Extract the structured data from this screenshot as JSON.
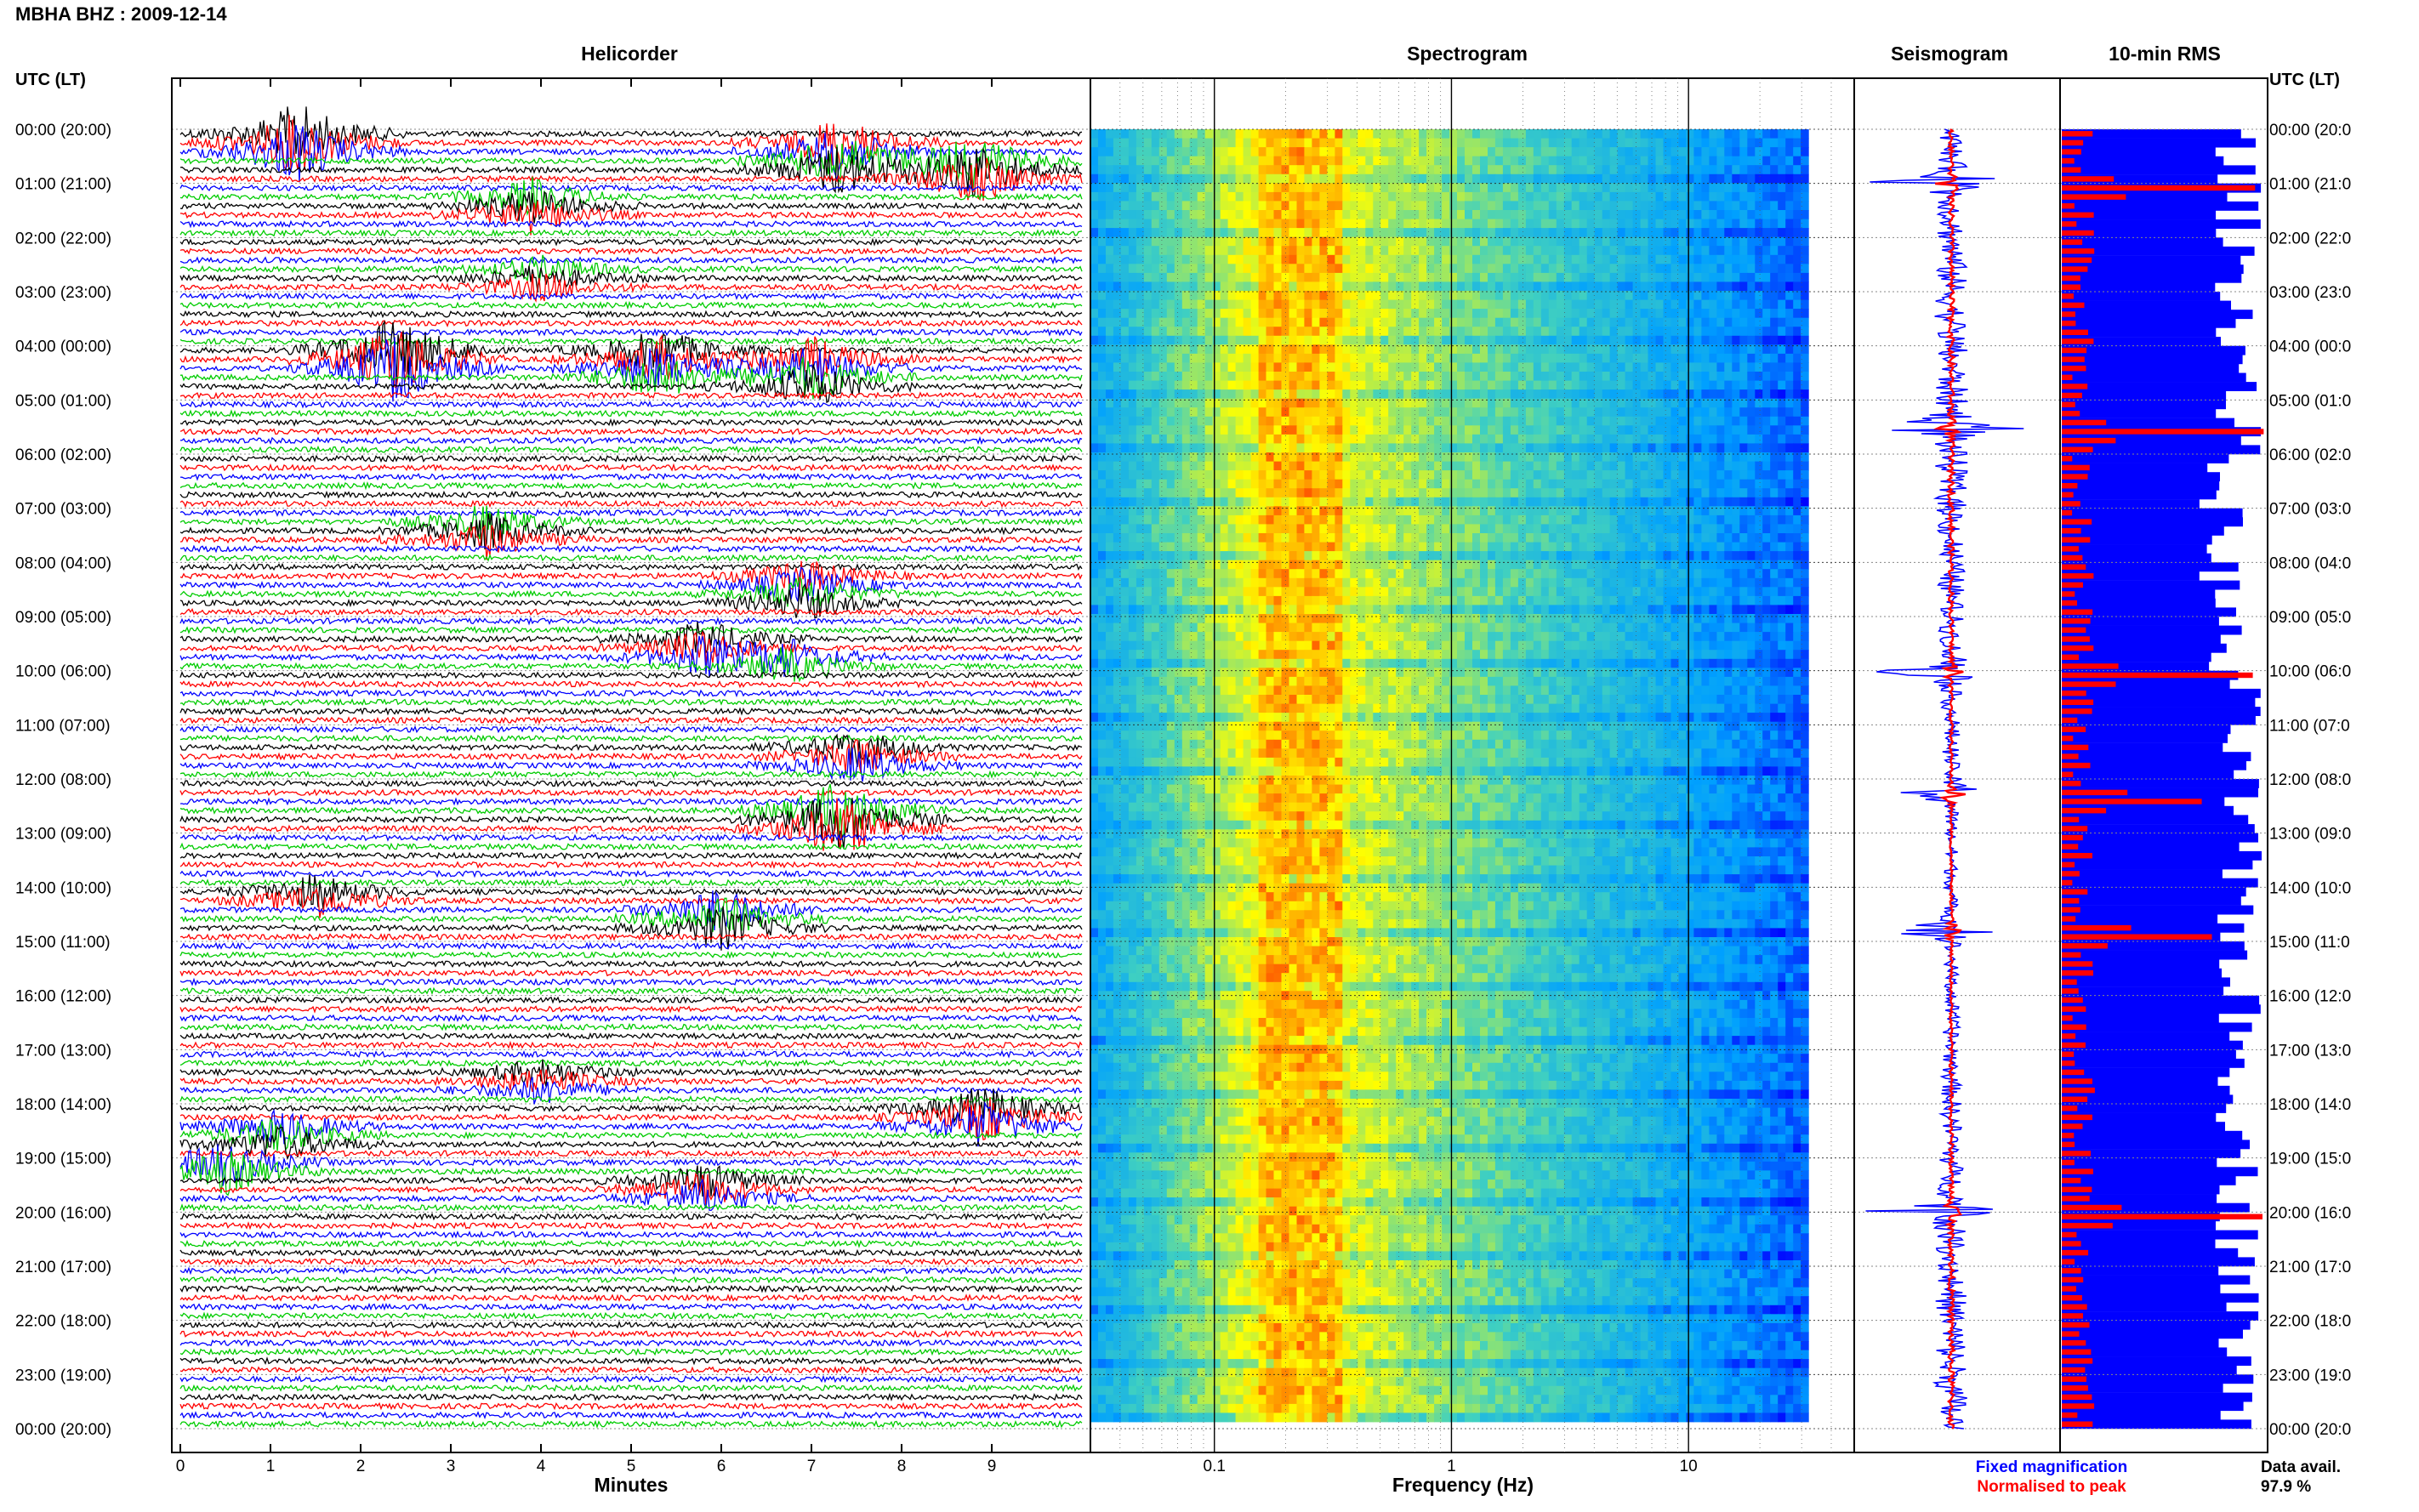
{
  "header": {
    "title": "MBHA BHZ : 2009-12-14"
  },
  "panels": {
    "helicorder": "Helicorder",
    "spectrogram": "Spectrogram",
    "seismogram": "Seismogram",
    "rms": "10-min RMS"
  },
  "time_axis": {
    "header": "UTC (LT)",
    "labels": [
      "00:00 (20:00)",
      "01:00 (21:00)",
      "02:00 (22:00)",
      "03:00 (23:00)",
      "04:00 (00:00)",
      "05:00 (01:00)",
      "06:00 (02:00)",
      "07:00 (03:00)",
      "08:00 (04:00)",
      "09:00 (05:00)",
      "10:00 (06:00)",
      "11:00 (07:00)",
      "12:00 (08:00)",
      "13:00 (09:00)",
      "14:00 (10:00)",
      "15:00 (11:00)",
      "16:00 (12:00)",
      "17:00 (13:00)",
      "18:00 (14:00)",
      "19:00 (15:00)",
      "20:00 (16:00)",
      "21:00 (17:00)",
      "22:00 (18:00)",
      "23:00 (19:00)",
      "00:00 (20:00)"
    ],
    "right_labels": [
      "00:00 (20:0",
      "01:00 (21:0",
      "02:00 (22:0",
      "03:00 (23:0",
      "04:00 (00:0",
      "05:00 (01:0",
      "06:00 (02:0",
      "07:00 (03:0",
      "08:00 (04:0",
      "09:00 (05:0",
      "10:00 (06:0",
      "11:00 (07:0",
      "12:00 (08:0",
      "13:00 (09:0",
      "14:00 (10:0",
      "15:00 (11:0",
      "16:00 (12:0",
      "17:00 (13:0",
      "18:00 (14:0",
      "19:00 (15:0",
      "20:00 (16:0",
      "21:00 (17:0",
      "22:00 (18:0",
      "23:00 (19:0",
      "00:00 (20:0"
    ]
  },
  "chart_data": [
    {
      "type": "line",
      "panel": "helicorder",
      "title": "Helicorder",
      "xlabel": "Minutes",
      "x_ticks": [
        "0",
        "1",
        "2",
        "3",
        "4",
        "5",
        "6",
        "7",
        "8",
        "9"
      ],
      "xlim": [
        0,
        10
      ],
      "trace_colors": [
        "#000000",
        "#ff0000",
        "#0000ff",
        "#00cc00"
      ],
      "traces_per_hour": 6,
      "hours": 24
    },
    {
      "type": "heatmap",
      "panel": "spectrogram",
      "title": "Spectrogram",
      "xlabel": "Frequency (Hz)",
      "x_ticks": [
        "0.1",
        "1",
        "10"
      ],
      "x_scale": "log",
      "xlim": [
        0.03,
        50
      ],
      "peak_band_hz": [
        0.15,
        0.35
      ],
      "colormap": [
        "#0000ff",
        "#00a0ff",
        "#40d0c0",
        "#ffff00",
        "#ff8000",
        "#ff0000"
      ]
    },
    {
      "type": "line",
      "panel": "seismogram",
      "title": "Seismogram",
      "series": [
        {
          "name": "Fixed magnification",
          "color": "#0000ff"
        },
        {
          "name": "Normalised to peak",
          "color": "#ff0000"
        }
      ]
    },
    {
      "type": "bar",
      "panel": "rms",
      "title": "10-min RMS",
      "series": [
        {
          "name": "Fixed magnification",
          "color": "#0000ff"
        },
        {
          "name": "Normalised to peak",
          "color": "#ff0000"
        }
      ]
    }
  ],
  "legend": {
    "fixed": "Fixed magnification",
    "normalised": "Normalised to peak"
  },
  "data_avail": {
    "label": "Data avail.",
    "value": "97.9 %"
  }
}
